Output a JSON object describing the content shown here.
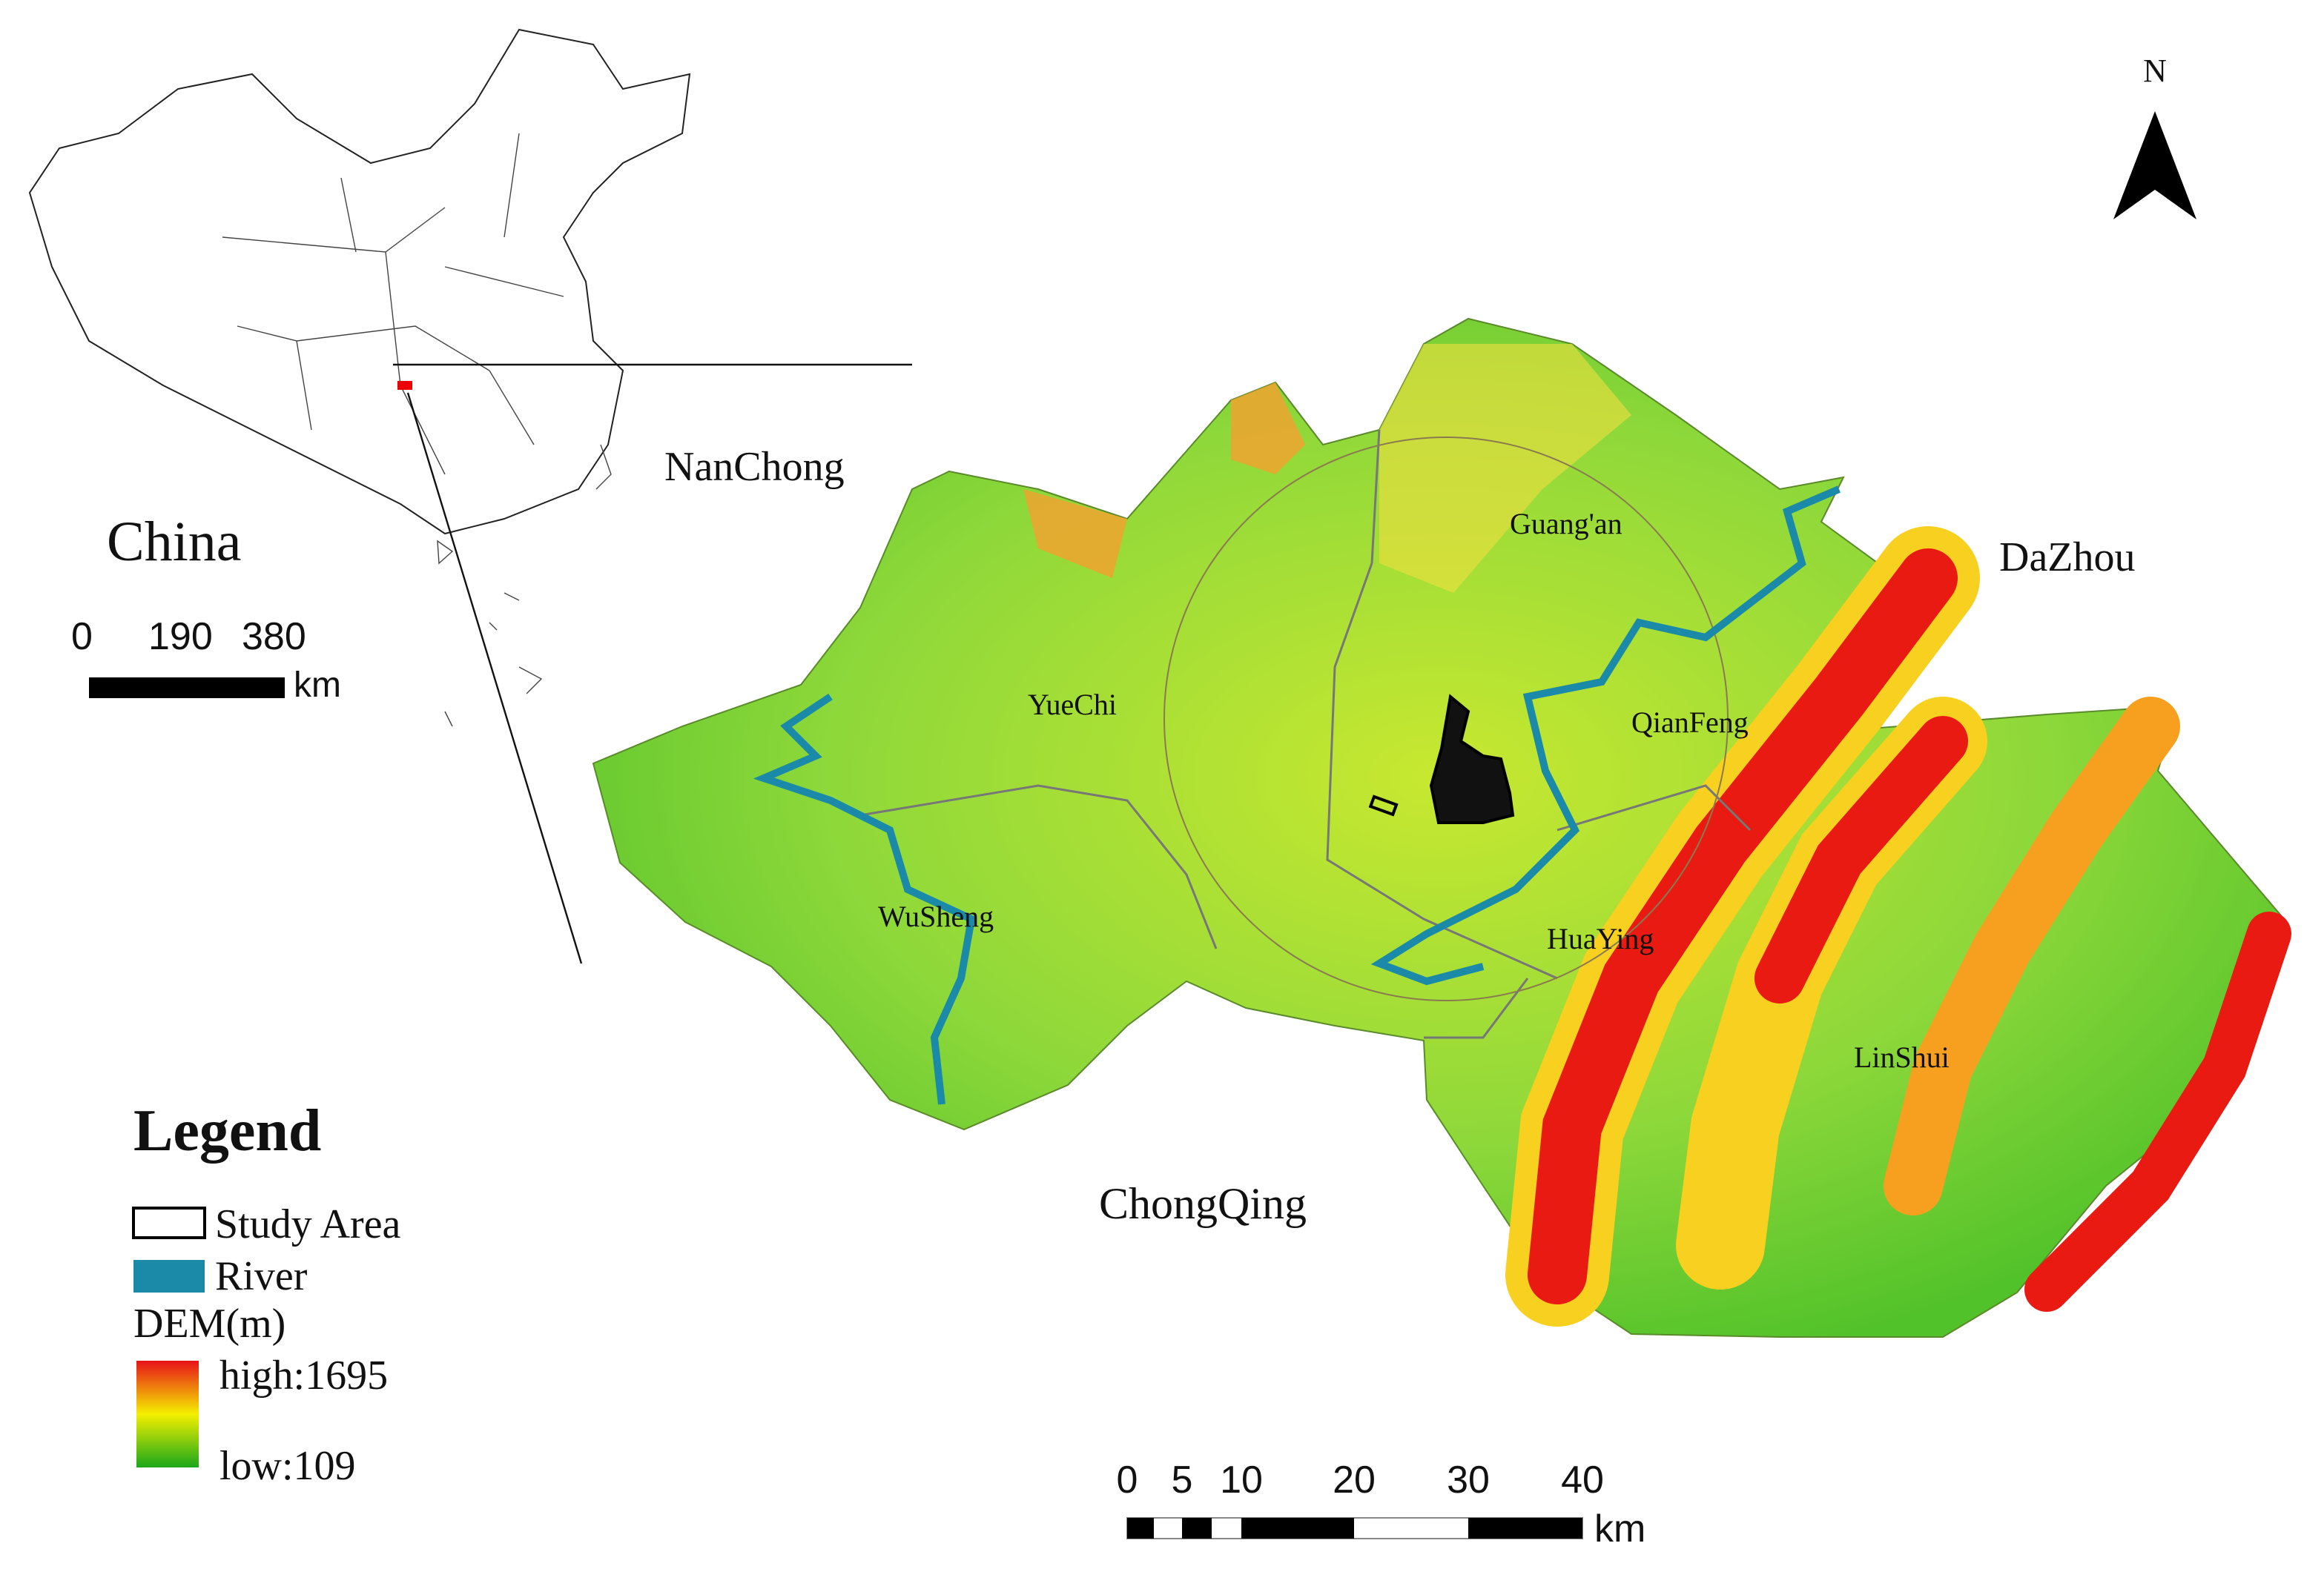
{
  "north_arrow": {
    "label": "N"
  },
  "inset": {
    "title": "China",
    "scale": {
      "ticks": [
        0,
        190,
        380
      ],
      "unit": "km"
    }
  },
  "places": {
    "nanchong": "NanChong",
    "guangan": "Guang'an",
    "dazhou": "DaZhou",
    "yuechi": "YueChi",
    "qianfeng": "QianFeng",
    "wusheng": "WuSheng",
    "huaying": "HuaYing",
    "linshui": "LinShui",
    "chongqing": "ChongQing"
  },
  "legend": {
    "title": "Legend",
    "items": [
      "Study Area",
      "River"
    ],
    "dem": {
      "title": "DEM(m)",
      "high": "high:1695",
      "low": "low:109"
    }
  },
  "scale_bar": {
    "ticks": [
      0,
      5,
      10,
      20,
      30,
      40
    ],
    "unit": "km"
  }
}
